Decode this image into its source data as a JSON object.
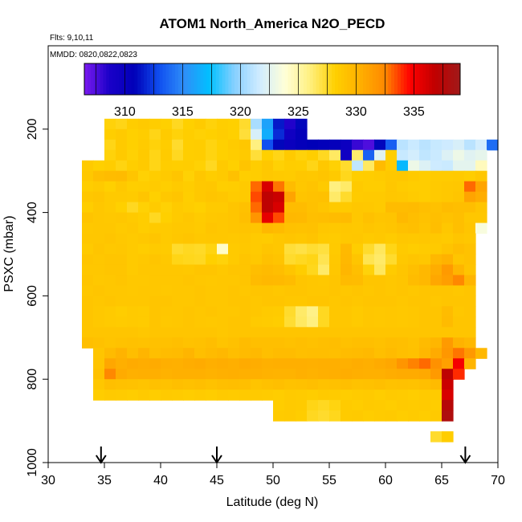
{
  "chart_data": {
    "type": "heatmap",
    "title": "ATOM1 North_America N2O_PECD",
    "flights_label": "Flts: 9,10,11",
    "mmdd_label": "MMDD: 0820,0822,0823",
    "xlabel": "Latitude (deg N)",
    "ylabel": "PSXC (mbar)",
    "xlim": [
      30,
      70
    ],
    "ylim": [
      1000,
      0
    ],
    "x_ticks": [
      30,
      35,
      40,
      45,
      50,
      55,
      60,
      65,
      70
    ],
    "y_ticks": [
      200,
      400,
      600,
      800,
      1000
    ],
    "colorbar": {
      "range": [
        306.5,
        339.0
      ],
      "ticks": [
        310,
        315,
        320,
        325,
        330,
        335
      ],
      "colors": [
        "#7b1aef",
        "#1a00c8",
        "#0000b8",
        "#1050f0",
        "#2f8ff8",
        "#00c0ff",
        "#88d0ff",
        "#d0ecff",
        "#ffffd8",
        "#fff080",
        "#ffd000",
        "#ffb000",
        "#ff8800",
        "#ff0000",
        "#c00000",
        "#a01a1a"
      ]
    },
    "arrows_latitude": [
      34.7,
      45.0,
      67.1
    ],
    "cell_lat_width": 1,
    "cell_pres_height": 25,
    "rows": [
      {
        "p": 175,
        "start": 35,
        "values": [
          328.0,
          327.8,
          328.4,
          328.6,
          328.4,
          328.2,
          327.6,
          328.2,
          328.5,
          328.0,
          328.3,
          328.2,
          327.4,
          320.5,
          316.0,
          311.5,
          308.5,
          311.0
        ]
      },
      {
        "p": 200,
        "start": 35,
        "values": [
          328.3,
          328.6,
          328.2,
          328.4,
          327.8,
          328.5,
          328.0,
          328.3,
          328.1,
          328.2,
          328.4,
          328.2,
          327.2,
          322.0,
          316.5,
          312.0,
          309.5,
          310.5
        ]
      },
      {
        "p": 225,
        "start": 35,
        "values": [
          327.8,
          328.6,
          328.2,
          328.5,
          328.0,
          328.4,
          327.4,
          328.3,
          328.4,
          327.9,
          328.2,
          328.5,
          328.8,
          326.0,
          313.0,
          311.0,
          310.0,
          310.5,
          310.8,
          310.6,
          310.4,
          309.8,
          308.0,
          307.5,
          311.0,
          313.5,
          321.0,
          321.5,
          321.0,
          321.4,
          321.6,
          322.0,
          321.0,
          321.8,
          314.0
        ]
      },
      {
        "p": 250,
        "start": 35,
        "values": [
          328.0,
          328.6,
          328.1,
          328.6,
          327.8,
          328.5,
          327.6,
          328.3,
          328.4,
          327.9,
          328.2,
          328.4,
          328.6,
          327.2,
          328.2,
          327.8,
          328.6,
          328.0,
          328.3,
          327.6,
          326.5,
          309.5,
          326.3,
          313.6,
          322.4,
          328.3,
          321.4,
          321.8,
          321.2,
          321.5,
          322.2,
          323.0,
          322.4,
          322.7
        ]
      },
      {
        "p": 275,
        "start": 33,
        "values": [
          328.6,
          328.2,
          328.4,
          327.9,
          328.3,
          328.6,
          327.8,
          328.4,
          328.3,
          328.4,
          328.1,
          327.6,
          328.6,
          328.2,
          329.0,
          328.4,
          328.8,
          328.1,
          328.4,
          328.3,
          327.8,
          328.7,
          328.1,
          327.4,
          321.2,
          326.5,
          329.6,
          328.5,
          317.0,
          323.0,
          322.2,
          321.6,
          321.5,
          322.6,
          322.6,
          324.5
        ]
      },
      {
        "p": 300,
        "start": 33,
        "values": [
          328.7,
          329.3,
          329.5,
          329.6,
          328.9,
          328.1,
          328.4,
          328.6,
          328.9,
          328.1,
          328.8,
          328.4,
          328.6,
          329.2,
          328.3,
          328.4,
          328.7,
          328.6,
          328.5,
          328.8,
          328.7,
          328.9,
          328.6,
          327.7,
          328.3,
          328.4,
          328.5,
          328.7,
          328.8,
          328.6,
          328.4,
          328.5,
          328.5,
          328.6,
          328.4,
          328.8
        ]
      },
      {
        "p": 325,
        "start": 33,
        "values": [
          328.4,
          328.6,
          328.2,
          328.7,
          328.3,
          328.4,
          328.5,
          328.3,
          328.6,
          328.4,
          328.7,
          328.8,
          328.3,
          328.4,
          328.6,
          333.0,
          336.0,
          332.8,
          329.5,
          328.8,
          329.0,
          328.6,
          326.0,
          326.4,
          328.6,
          328.4,
          328.4,
          328.8,
          328.5,
          328.4,
          328.4,
          328.6,
          328.7,
          328.8,
          333.0,
          331.0
        ]
      },
      {
        "p": 350,
        "start": 33,
        "values": [
          328.8,
          328.9,
          328.6,
          328.6,
          328.5,
          328.9,
          328.2,
          328.7,
          328.9,
          328.3,
          328.7,
          328.9,
          328.8,
          328.5,
          328.6,
          333.5,
          337.0,
          336.5,
          331.0,
          329.0,
          329.1,
          329.2,
          326.4,
          327.4,
          328.5,
          328.6,
          328.6,
          328.8,
          328.7,
          328.5,
          328.4,
          328.6,
          328.7,
          328.9,
          331.0,
          330.5
        ]
      },
      {
        "p": 375,
        "start": 33,
        "values": [
          328.4,
          328.8,
          328.6,
          328.2,
          327.6,
          328.1,
          328.5,
          328.1,
          328.6,
          328.4,
          328.2,
          328.6,
          328.6,
          328.9,
          329.2,
          333.0,
          337.0,
          336.0,
          329.5,
          329.5,
          329.2,
          328.9,
          328.6,
          328.6,
          328.8,
          328.7,
          328.6,
          329.5,
          329.5,
          329.6,
          329.3,
          329.2,
          329.5,
          329.4,
          329.4,
          328.9
        ]
      },
      {
        "p": 400,
        "start": 33,
        "values": [
          329.0,
          328.8,
          328.7,
          328.8,
          328.6,
          328.4,
          327.6,
          328.2,
          328.6,
          328.8,
          328.5,
          328.7,
          328.8,
          328.9,
          329.3,
          331.8,
          335.5,
          333.5,
          329.8,
          329.7,
          329.3,
          329.4,
          329.5,
          329.6,
          328.8,
          329.2,
          328.9,
          329.0,
          329.7,
          329.4,
          329.1,
          329.3,
          329.1,
          329.3,
          328.8,
          328.8
        ]
      },
      {
        "p": 425,
        "start": 33,
        "values": [
          328.7,
          328.8,
          328.8,
          328.6,
          328.7,
          328.4,
          328.6,
          328.6,
          328.7,
          328.7,
          328.6,
          328.9,
          328.8,
          328.9,
          329.0,
          328.9,
          329.8,
          329.6,
          329.2,
          329.1,
          329.2,
          328.8,
          328.7,
          328.8,
          328.7,
          328.9,
          328.8,
          328.9,
          329.2,
          329.3,
          329.0,
          329.4,
          328.8,
          329.3,
          328.9,
          323.5
        ]
      },
      {
        "p": 450,
        "start": 33,
        "values": [
          328.8,
          328.8,
          328.9,
          328.7,
          328.6,
          328.7,
          328.9,
          328.6,
          328.8,
          328.9,
          328.7,
          328.8,
          328.8,
          328.7,
          328.8,
          328.6,
          328.5,
          328.8,
          328.9,
          328.8,
          329.0,
          328.6,
          328.5,
          328.7,
          328.8,
          328.6,
          328.7,
          328.5,
          328.8,
          328.7,
          328.8,
          328.7,
          328.6,
          328.9,
          328.8
        ]
      },
      {
        "p": 475,
        "start": 33,
        "values": [
          328.6,
          328.9,
          328.7,
          328.8,
          328.6,
          328.4,
          328.6,
          328.5,
          327.4,
          327.6,
          327.5,
          327.9,
          324.2,
          328.6,
          328.7,
          328.6,
          328.9,
          328.8,
          327.2,
          327.0,
          327.3,
          327.1,
          328.6,
          329.7,
          328.4,
          327.4,
          326.6,
          327.8,
          328.6,
          328.4,
          328.5,
          328.6,
          329.0,
          329.4,
          329.1
        ]
      },
      {
        "p": 500,
        "start": 33,
        "values": [
          328.9,
          328.8,
          328.9,
          328.9,
          328.6,
          328.7,
          328.9,
          328.7,
          327.8,
          327.7,
          327.6,
          328.2,
          328.0,
          328.6,
          328.9,
          328.7,
          329.2,
          329.0,
          327.4,
          327.6,
          327.8,
          326.8,
          328.7,
          329.8,
          328.9,
          326.8,
          326.4,
          327.4,
          328.7,
          328.9,
          328.8,
          329.8,
          330.2,
          328.9,
          329.1
        ]
      },
      {
        "p": 525,
        "start": 33,
        "values": [
          328.8,
          328.8,
          328.9,
          328.9,
          328.6,
          328.8,
          328.8,
          328.8,
          328.8,
          328.7,
          328.9,
          328.9,
          328.7,
          328.9,
          328.9,
          329.4,
          329.6,
          329.4,
          328.9,
          328.4,
          327.7,
          326.4,
          328.8,
          329.9,
          329.3,
          328.0,
          326.6,
          328.5,
          328.9,
          329.3,
          329.8,
          330.5,
          331.5,
          330.0,
          329.0
        ]
      },
      {
        "p": 550,
        "start": 33,
        "values": [
          328.9,
          328.7,
          328.8,
          328.9,
          328.7,
          328.7,
          328.8,
          328.8,
          328.8,
          328.9,
          328.8,
          328.7,
          328.8,
          328.8,
          328.9,
          329.6,
          329.8,
          329.7,
          329.5,
          328.9,
          328.8,
          328.7,
          328.9,
          329.6,
          329.5,
          328.9,
          328.9,
          328.8,
          328.9,
          329.5,
          329.8,
          330.8,
          331.3,
          332.5,
          330.0
        ]
      },
      {
        "p": 575,
        "start": 33,
        "values": [
          328.8,
          328.9,
          328.8,
          328.8,
          328.7,
          328.8,
          328.8,
          328.7,
          328.8,
          328.8,
          328.9,
          328.8,
          328.8,
          328.9,
          328.8,
          328.9,
          328.9,
          328.8,
          328.9,
          328.9,
          328.8,
          328.8,
          328.9,
          328.8,
          328.9,
          328.8,
          328.9,
          328.8,
          328.9,
          328.8,
          328.9,
          328.9,
          328.9,
          328.8,
          328.9
        ]
      },
      {
        "p": 600,
        "start": 33,
        "values": [
          328.9,
          328.8,
          328.9,
          328.8,
          328.8,
          328.8,
          328.9,
          328.9,
          328.8,
          328.8,
          328.9,
          328.8,
          328.8,
          328.9,
          328.9,
          328.8,
          328.9,
          328.9,
          328.8,
          328.8,
          328.9,
          328.9,
          328.8,
          328.9,
          328.8,
          328.9,
          328.9,
          328.9,
          328.8,
          328.9,
          328.9,
          328.8,
          328.9,
          328.9,
          328.9
        ]
      },
      {
        "p": 625,
        "start": 33,
        "values": [
          328.9,
          328.7,
          328.6,
          328.4,
          328.6,
          328.5,
          328.9,
          328.8,
          328.8,
          328.9,
          328.8,
          328.9,
          328.8,
          328.8,
          328.9,
          328.8,
          328.6,
          328.5,
          327.4,
          326.4,
          325.8,
          327.6,
          328.8,
          328.8,
          328.6,
          328.8,
          328.7,
          328.8,
          328.7,
          328.8,
          328.9,
          328.9,
          329.5,
          328.8,
          328.9
        ]
      },
      {
        "p": 650,
        "start": 33,
        "values": [
          328.9,
          328.7,
          328.6,
          328.5,
          328.6,
          328.5,
          328.9,
          328.7,
          328.8,
          328.9,
          328.8,
          328.7,
          328.8,
          328.9,
          328.9,
          328.6,
          328.5,
          328.4,
          327.3,
          326.5,
          326.0,
          327.6,
          328.8,
          328.8,
          328.6,
          328.8,
          328.7,
          328.8,
          328.7,
          328.8,
          328.9,
          328.9,
          329.6,
          328.9,
          328.9
        ]
      },
      {
        "p": 675,
        "start": 33,
        "values": [
          328.9,
          328.9,
          328.9,
          328.9,
          328.9,
          328.8,
          328.9,
          328.9,
          328.9,
          328.9,
          328.9,
          328.9,
          328.8,
          328.9,
          328.9,
          328.9,
          328.9,
          328.9,
          328.9,
          328.9,
          328.9,
          328.9,
          328.9,
          328.9,
          328.9,
          328.9,
          328.9,
          328.9,
          328.9,
          328.9,
          328.9,
          328.9,
          328.9,
          328.9,
          328.9
        ]
      },
      {
        "p": 700,
        "start": 33,
        "values": [
          329.3,
          329.2,
          329.0,
          329.1,
          329.2,
          329.1,
          329.2,
          329.2,
          329.3,
          329.1,
          329.2,
          329.4,
          329.0,
          329.2,
          329.5,
          329.3,
          329.3,
          329.3,
          329.2,
          329.3,
          329.2,
          329.3,
          329.4,
          329.2,
          329.3,
          329.3,
          329.2,
          329.4,
          329.3,
          329.1,
          329.6,
          329.9,
          331.5,
          330.2,
          329.8
        ]
      },
      {
        "p": 725,
        "start": 34,
        "values": [
          328.9,
          329.6,
          330.1,
          329.4,
          330.0,
          329.3,
          329.5,
          329.6,
          330.0,
          329.3,
          329.6,
          329.8,
          329.4,
          329.6,
          329.7,
          329.3,
          329.5,
          329.5,
          329.3,
          329.4,
          329.4,
          329.3,
          329.5,
          329.6,
          329.7,
          329.3,
          329.6,
          329.3,
          329.2,
          329.8,
          330.6,
          331.7,
          332.8,
          331.6,
          329.8
        ]
      },
      {
        "p": 750,
        "start": 34,
        "values": [
          329.0,
          330.8,
          330.4,
          330.6,
          330.5,
          330.6,
          330.4,
          330.3,
          330.5,
          330.6,
          330.4,
          330.5,
          330.4,
          330.6,
          330.5,
          330.3,
          330.4,
          330.4,
          330.4,
          330.3,
          330.4,
          330.4,
          330.3,
          330.5,
          330.4,
          330.6,
          330.8,
          331.8,
          332.6,
          333.0,
          332.0,
          331.2,
          335.0,
          330.0
        ]
      },
      {
        "p": 775,
        "start": 34,
        "values": [
          329.2,
          332.5,
          330.6,
          330.3,
          330.4,
          330.4,
          330.2,
          330.3,
          330.3,
          330.3,
          330.2,
          330.3,
          330.4,
          330.3,
          330.3,
          330.2,
          330.1,
          330.1,
          330.3,
          330.2,
          330.3,
          330.4,
          330.5,
          330.4,
          330.3,
          330.3,
          330.5,
          330.6,
          330.6,
          330.7,
          331.5,
          337.0,
          334.0
        ]
      },
      {
        "p": 800,
        "start": 34,
        "values": [
          328.8,
          329.3,
          329.2,
          329.1,
          329.0,
          329.2,
          329.1,
          329.3,
          329.2,
          329.3,
          329.1,
          329.3,
          329.4,
          329.3,
          329.0,
          329.2,
          329.3,
          329.1,
          329.2,
          329.3,
          329.1,
          329.2,
          329.3,
          329.1,
          329.2,
          329.3,
          329.1,
          329.2,
          329.1,
          329.3,
          329.6,
          336.5
        ]
      },
      {
        "p": 825,
        "start": 34,
        "values": [
          328.4,
          328.6,
          328.5,
          328.4,
          328.6,
          328.4,
          328.6,
          328.5,
          328.4,
          328.5,
          328.4,
          328.6,
          328.5,
          328.6,
          328.6,
          328.5,
          328.4,
          328.6,
          328.5,
          328.4,
          328.6,
          328.5,
          328.4,
          328.5,
          328.6,
          328.4,
          328.6,
          328.5,
          328.4,
          328.6,
          328.5,
          336.0
        ]
      },
      {
        "p": 850,
        "start": 50,
        "values": [
          328.4,
          328.6,
          328.5,
          327.8,
          327.6,
          327.9,
          328.5,
          328.4,
          328.6,
          328.5,
          328.4,
          328.6,
          328.5,
          328.6,
          328.4,
          337.5
        ]
      },
      {
        "p": 875,
        "start": 50,
        "values": [
          328.5,
          328.6,
          328.4,
          327.6,
          327.4,
          327.7,
          328.5,
          328.6,
          328.4,
          328.5,
          328.6,
          328.4,
          328.5,
          328.4,
          328.6,
          338.0
        ]
      },
      {
        "p": 925,
        "start": 64,
        "values": [
          327.4,
          328.4
        ]
      }
    ]
  }
}
